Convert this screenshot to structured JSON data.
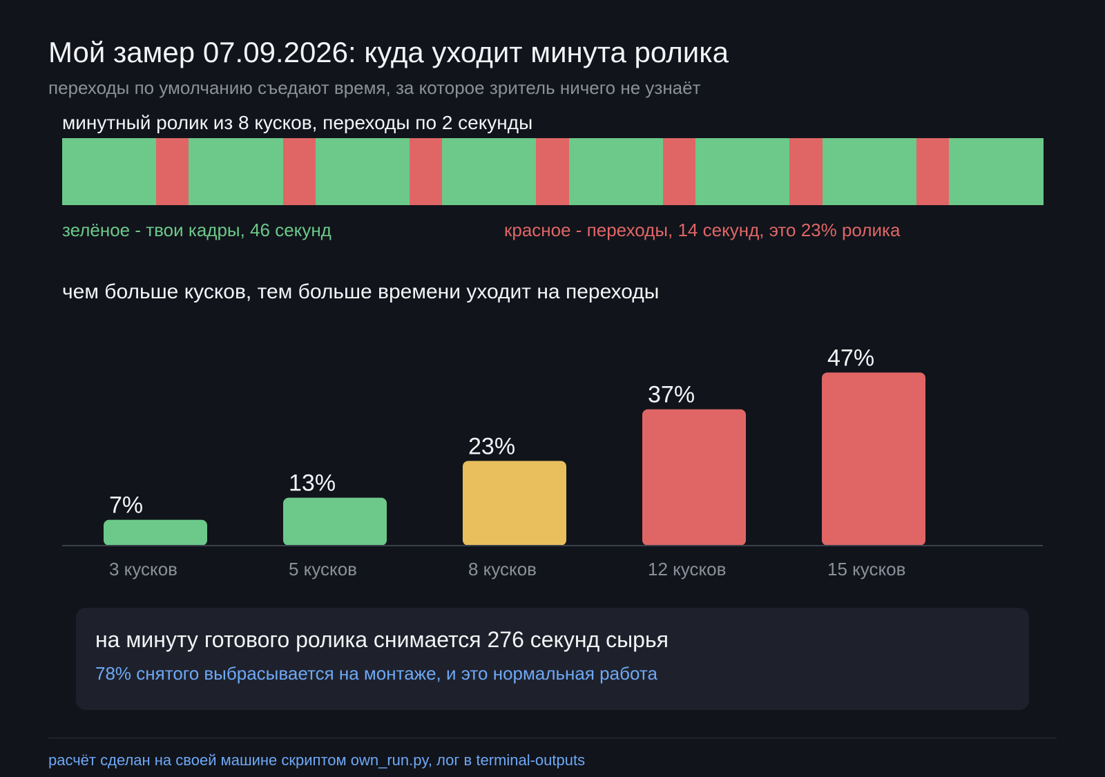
{
  "title": "Мой замер 07.09.2026: куда уходит минута ролика",
  "subtitle": "переходы по умолчанию съедают время, за которое зритель ничего не узнаёт",
  "timeline": {
    "heading": "минутный ролик из 8 кусков, переходы по 2 секунды",
    "total_seconds": 60,
    "segments": [
      {
        "kind": "clip",
        "seconds": 5.75
      },
      {
        "kind": "transition",
        "seconds": 2
      },
      {
        "kind": "clip",
        "seconds": 5.75
      },
      {
        "kind": "transition",
        "seconds": 2
      },
      {
        "kind": "clip",
        "seconds": 5.75
      },
      {
        "kind": "transition",
        "seconds": 2
      },
      {
        "kind": "clip",
        "seconds": 5.75
      },
      {
        "kind": "transition",
        "seconds": 2
      },
      {
        "kind": "clip",
        "seconds": 5.75
      },
      {
        "kind": "transition",
        "seconds": 2
      },
      {
        "kind": "clip",
        "seconds": 5.75
      },
      {
        "kind": "transition",
        "seconds": 2
      },
      {
        "kind": "clip",
        "seconds": 5.75
      },
      {
        "kind": "transition",
        "seconds": 2
      },
      {
        "kind": "clip",
        "seconds": 5.75
      }
    ],
    "legend_clips": "зелёное - твои кадры, 46 секунд",
    "legend_transitions": "красное - переходы, 14 секунд, это 23% ролика"
  },
  "chart_data": {
    "type": "bar",
    "title": "чем больше кусков, тем больше времени уходит на переходы",
    "categories": [
      "3 кусков",
      "5 кусков",
      "8 кусков",
      "12 кусков",
      "15 кусков"
    ],
    "values": [
      7,
      13,
      23,
      37,
      47
    ],
    "value_labels": [
      "7%",
      "13%",
      "23%",
      "37%",
      "47%"
    ],
    "bar_colors": [
      "#6cc98a",
      "#6cc98a",
      "#e8bf5c",
      "#e06666",
      "#e06666"
    ],
    "ylim": [
      0,
      60
    ],
    "grid": false
  },
  "summary": {
    "main": "на минуту готового ролика снимается 276 секунд сырья",
    "note": "78% снятого выбрасывается на монтаже, и это нормальная работа"
  },
  "footer": "расчёт сделан на своей машине скриптом own_run.py, лог в terminal-outputs",
  "colors": {
    "background": "#11141b",
    "clip": "#6cc98a",
    "transition": "#e06666",
    "highlight": "#e8bf5c",
    "accent_blue": "#6ea8f5",
    "muted": "#8b909a",
    "card": "#1e212b"
  }
}
